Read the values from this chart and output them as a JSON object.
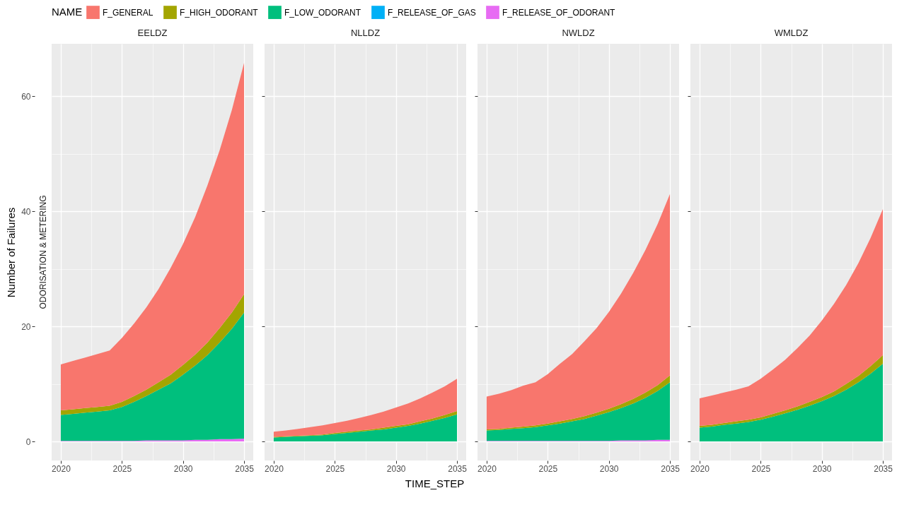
{
  "chart_data": [
    {
      "type": "area",
      "title": "EELDZ",
      "ylabel": "Number of Failures",
      "legend_title": "NAME",
      "legend": "top",
      "annotations": [
        "ODORISATION & METERING"
      ],
      "stacked": true,
      "grid": true,
      "x": [
        2020,
        2021,
        2022,
        2023,
        2024,
        2025,
        2026,
        2027,
        2028,
        2029,
        2030,
        2031,
        2032,
        2033,
        2034,
        2035
      ],
      "xlim": [
        2019.25,
        2035.75
      ],
      "xticks": [
        2020,
        {
          "value": 2022.5,
          "label": null
        },
        2025,
        {
          "value": 2027.5,
          "label": null
        },
        2030,
        {
          "value": 2032.5,
          "label": null
        },
        2035
      ],
      "ylim": [
        -3.3,
        69.1
      ],
      "yticks": [
        0,
        {
          "value": 10,
          "label": null
        },
        20,
        {
          "value": 30,
          "label": null
        },
        40,
        {
          "value": 50,
          "label": null
        },
        60
      ],
      "series": [
        {
          "name": "F_RELEASE_OF_ODORANT",
          "color": "#e76bf3",
          "values": [
            0.1,
            0.1,
            0.1,
            0.1,
            0.1,
            0.1,
            0.1,
            0.2,
            0.2,
            0.2,
            0.2,
            0.3,
            0.3,
            0.4,
            0.4,
            0.5
          ]
        },
        {
          "name": "F_RELEASE_OF_GAS",
          "color": "#00b0f6",
          "values": [
            null,
            null,
            null,
            null,
            null,
            null,
            null,
            null,
            null,
            null,
            null,
            null,
            null,
            null,
            null,
            null
          ]
        },
        {
          "name": "F_LOW_ODORANT",
          "color": "#00bf7d",
          "values": [
            4.5,
            4.7,
            4.9,
            5.1,
            5.3,
            5.9,
            6.8,
            7.7,
            8.8,
            9.9,
            11.4,
            12.9,
            14.7,
            16.8,
            19.2,
            21.9
          ]
        },
        {
          "name": "F_HIGH_ODORANT",
          "color": "#a3a500",
          "values": [
            0.8,
            0.8,
            0.8,
            0.8,
            0.8,
            0.9,
            1.0,
            1.1,
            1.3,
            1.5,
            1.7,
            1.9,
            2.2,
            2.5,
            2.8,
            3.2
          ]
        },
        {
          "name": "F_GENERAL",
          "color": "#f8766d",
          "values": [
            8.0,
            8.4,
            8.8,
            9.2,
            9.6,
            11.1,
            12.6,
            14.3,
            16.2,
            18.6,
            21.0,
            23.9,
            27.3,
            30.9,
            35.2,
            40.2
          ]
        }
      ]
    },
    {
      "type": "area",
      "title": "NLLDZ",
      "xlabel": "TIME_STEP",
      "stacked": true,
      "grid": true,
      "tick_labels": "x",
      "x": [
        2020,
        2021,
        2022,
        2023,
        2024,
        2025,
        2026,
        2027,
        2028,
        2029,
        2030,
        2031,
        2032,
        2033,
        2034,
        2035
      ],
      "xlim": [
        2019.25,
        2035.75
      ],
      "xticks": [
        2020,
        {
          "value": 2022.5,
          "label": null
        },
        2025,
        {
          "value": 2027.5,
          "label": null
        },
        2030,
        {
          "value": 2032.5,
          "label": null
        },
        2035
      ],
      "ylim": [
        -3.3,
        69.1
      ],
      "yticks": [
        0,
        {
          "value": 10,
          "label": null
        },
        20,
        {
          "value": 30,
          "label": null
        },
        40,
        {
          "value": 50,
          "label": null
        },
        60
      ],
      "series": [
        {
          "name": "F_LOW_ODORANT",
          "color": "#00bf7d",
          "values": [
            0.7,
            0.8,
            0.9,
            1.0,
            1.1,
            1.3,
            1.5,
            1.7,
            1.9,
            2.1,
            2.4,
            2.7,
            3.1,
            3.6,
            4.1,
            4.7
          ]
        },
        {
          "name": "F_HIGH_ODORANT",
          "color": "#a3a500",
          "values": [
            0.1,
            0.1,
            0.1,
            0.1,
            0.1,
            0.2,
            0.2,
            0.2,
            0.2,
            0.3,
            0.3,
            0.3,
            0.4,
            0.4,
            0.5,
            0.6
          ]
        },
        {
          "name": "F_GENERAL",
          "color": "#f8766d",
          "values": [
            0.9,
            1.0,
            1.2,
            1.4,
            1.6,
            1.7,
            1.9,
            2.2,
            2.5,
            2.8,
            3.2,
            3.6,
            4.0,
            4.5,
            5.0,
            5.6
          ]
        }
      ]
    },
    {
      "type": "area",
      "title": "NWLDZ",
      "stacked": true,
      "grid": true,
      "tick_labels": "x",
      "x": [
        2020,
        2021,
        2022,
        2023,
        2024,
        2025,
        2026,
        2027,
        2028,
        2029,
        2030,
        2031,
        2032,
        2033,
        2034,
        2035
      ],
      "xlim": [
        2019.25,
        2035.75
      ],
      "xticks": [
        2020,
        {
          "value": 2022.5,
          "label": null
        },
        2025,
        {
          "value": 2027.5,
          "label": null
        },
        2030,
        {
          "value": 2032.5,
          "label": null
        },
        2035
      ],
      "ylim": [
        -3.3,
        69.1
      ],
      "yticks": [
        0,
        {
          "value": 10,
          "label": null
        },
        20,
        {
          "value": 30,
          "label": null
        },
        40,
        {
          "value": 50,
          "label": null
        },
        60
      ],
      "series": [
        {
          "name": "F_RELEASE_OF_ODORANT",
          "color": "#e76bf3",
          "values": [
            0.1,
            0.1,
            0.1,
            0.1,
            0.1,
            0.1,
            0.1,
            0.1,
            0.1,
            0.1,
            0.1,
            0.2,
            0.2,
            0.2,
            0.3,
            0.3
          ]
        },
        {
          "name": "F_LOW_ODORANT",
          "color": "#00bf7d",
          "values": [
            1.8,
            1.9,
            2.1,
            2.2,
            2.4,
            2.7,
            3.0,
            3.4,
            3.8,
            4.4,
            5.0,
            5.6,
            6.4,
            7.4,
            8.5,
            10.0
          ]
        },
        {
          "name": "F_HIGH_ODORANT",
          "color": "#a3a500",
          "values": [
            0.2,
            0.2,
            0.2,
            0.3,
            0.3,
            0.3,
            0.4,
            0.4,
            0.5,
            0.5,
            0.6,
            0.7,
            0.8,
            0.9,
            1.0,
            1.2
          ]
        },
        {
          "name": "F_GENERAL",
          "color": "#f8766d",
          "values": [
            5.7,
            6.1,
            6.5,
            7.1,
            7.5,
            8.6,
            10.0,
            11.3,
            13.0,
            14.7,
            16.8,
            19.2,
            21.9,
            24.8,
            28.0,
            31.5
          ]
        }
      ]
    },
    {
      "type": "area",
      "title": "WMLDZ",
      "stacked": true,
      "grid": true,
      "tick_labels": "x",
      "x": [
        2020,
        2021,
        2022,
        2023,
        2024,
        2025,
        2026,
        2027,
        2028,
        2029,
        2030,
        2031,
        2032,
        2033,
        2034,
        2035
      ],
      "xlim": [
        2019.25,
        2035.75
      ],
      "xticks": [
        2020,
        {
          "value": 2022.5,
          "label": null
        },
        2025,
        {
          "value": 2027.5,
          "label": null
        },
        2030,
        {
          "value": 2032.5,
          "label": null
        },
        2035
      ],
      "ylim": [
        -3.3,
        69.1
      ],
      "yticks": [
        0,
        {
          "value": 10,
          "label": null
        },
        20,
        {
          "value": 30,
          "label": null
        },
        40,
        {
          "value": 50,
          "label": null
        },
        60
      ],
      "series": [
        {
          "name": "F_LOW_ODORANT",
          "color": "#00bf7d",
          "values": [
            2.4,
            2.6,
            2.9,
            3.1,
            3.4,
            3.8,
            4.3,
            4.9,
            5.5,
            6.2,
            7.0,
            7.9,
            9.0,
            10.3,
            11.8,
            13.5
          ]
        },
        {
          "name": "F_HIGH_ODORANT",
          "color": "#a3a500",
          "values": [
            0.3,
            0.3,
            0.3,
            0.4,
            0.4,
            0.4,
            0.5,
            0.5,
            0.6,
            0.7,
            0.7,
            0.8,
            1.0,
            1.1,
            1.3,
            1.5
          ]
        },
        {
          "name": "F_GENERAL",
          "color": "#f8766d",
          "values": [
            4.8,
            5.1,
            5.3,
            5.5,
            5.8,
            6.7,
            7.7,
            8.8,
            10.1,
            11.5,
            13.3,
            15.2,
            17.2,
            19.6,
            22.3,
            25.4
          ]
        }
      ]
    }
  ]
}
